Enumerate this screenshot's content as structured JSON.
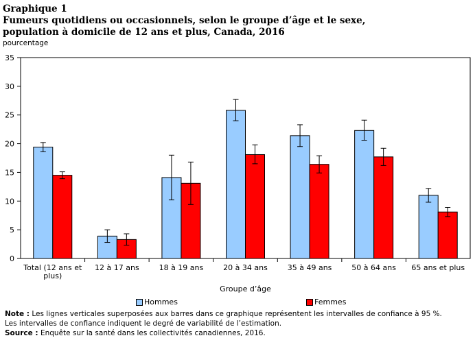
{
  "title_line1": "Graphique  1",
  "title_line2": "Fumeurs quotidiens ou occasionnels, selon le groupe d’âge et le sexe,",
  "title_line3": "population  à domicile  de 12  ans et plus, Canada, 2016",
  "notes": {
    "note_label": "Note :",
    "note_text": " Les lignes verticales superposées aux barres dans ce graphique représentent les intervalles de confiance à 95 %.",
    "note_text2": "Les intervalles de confiance indiquent le degré de variabilité de l’estimation.",
    "source_label": "Source :",
    "source_text": " Enquête sur la santé dans les collectivités canadiennes, 2016."
  },
  "chart_data": {
    "type": "bar",
    "ylabel": "pourcentage",
    "xlabel": "Groupe d’âge",
    "ylim": [
      0,
      35
    ],
    "yticks": [
      0,
      5,
      10,
      15,
      20,
      25,
      30,
      35
    ],
    "categories": [
      [
        "Total (12 ans et",
        "plus)"
      ],
      [
        "12 à 17 ans"
      ],
      [
        "18 à 19 ans"
      ],
      [
        "20 à 34 ans"
      ],
      [
        "35 à 49 ans"
      ],
      [
        "50 à 64 ans"
      ],
      [
        "65 ans et plus"
      ]
    ],
    "series": [
      {
        "name": "Hommes",
        "color": "#99ccff",
        "values": [
          19.4,
          3.9,
          14.1,
          25.8,
          21.4,
          22.3,
          11.0
        ],
        "ci_low": [
          18.6,
          2.8,
          10.2,
          24.0,
          19.5,
          20.6,
          9.8
        ],
        "ci_high": [
          20.2,
          5.0,
          18.0,
          27.7,
          23.3,
          24.1,
          12.2
        ]
      },
      {
        "name": "Femmes",
        "color": "#ff0000",
        "values": [
          14.5,
          3.3,
          13.1,
          18.1,
          16.4,
          17.7,
          8.1
        ],
        "ci_low": [
          13.9,
          2.3,
          9.4,
          16.5,
          14.9,
          16.2,
          7.3
        ],
        "ci_high": [
          15.1,
          4.3,
          16.8,
          19.8,
          17.9,
          19.2,
          8.9
        ]
      }
    ]
  }
}
